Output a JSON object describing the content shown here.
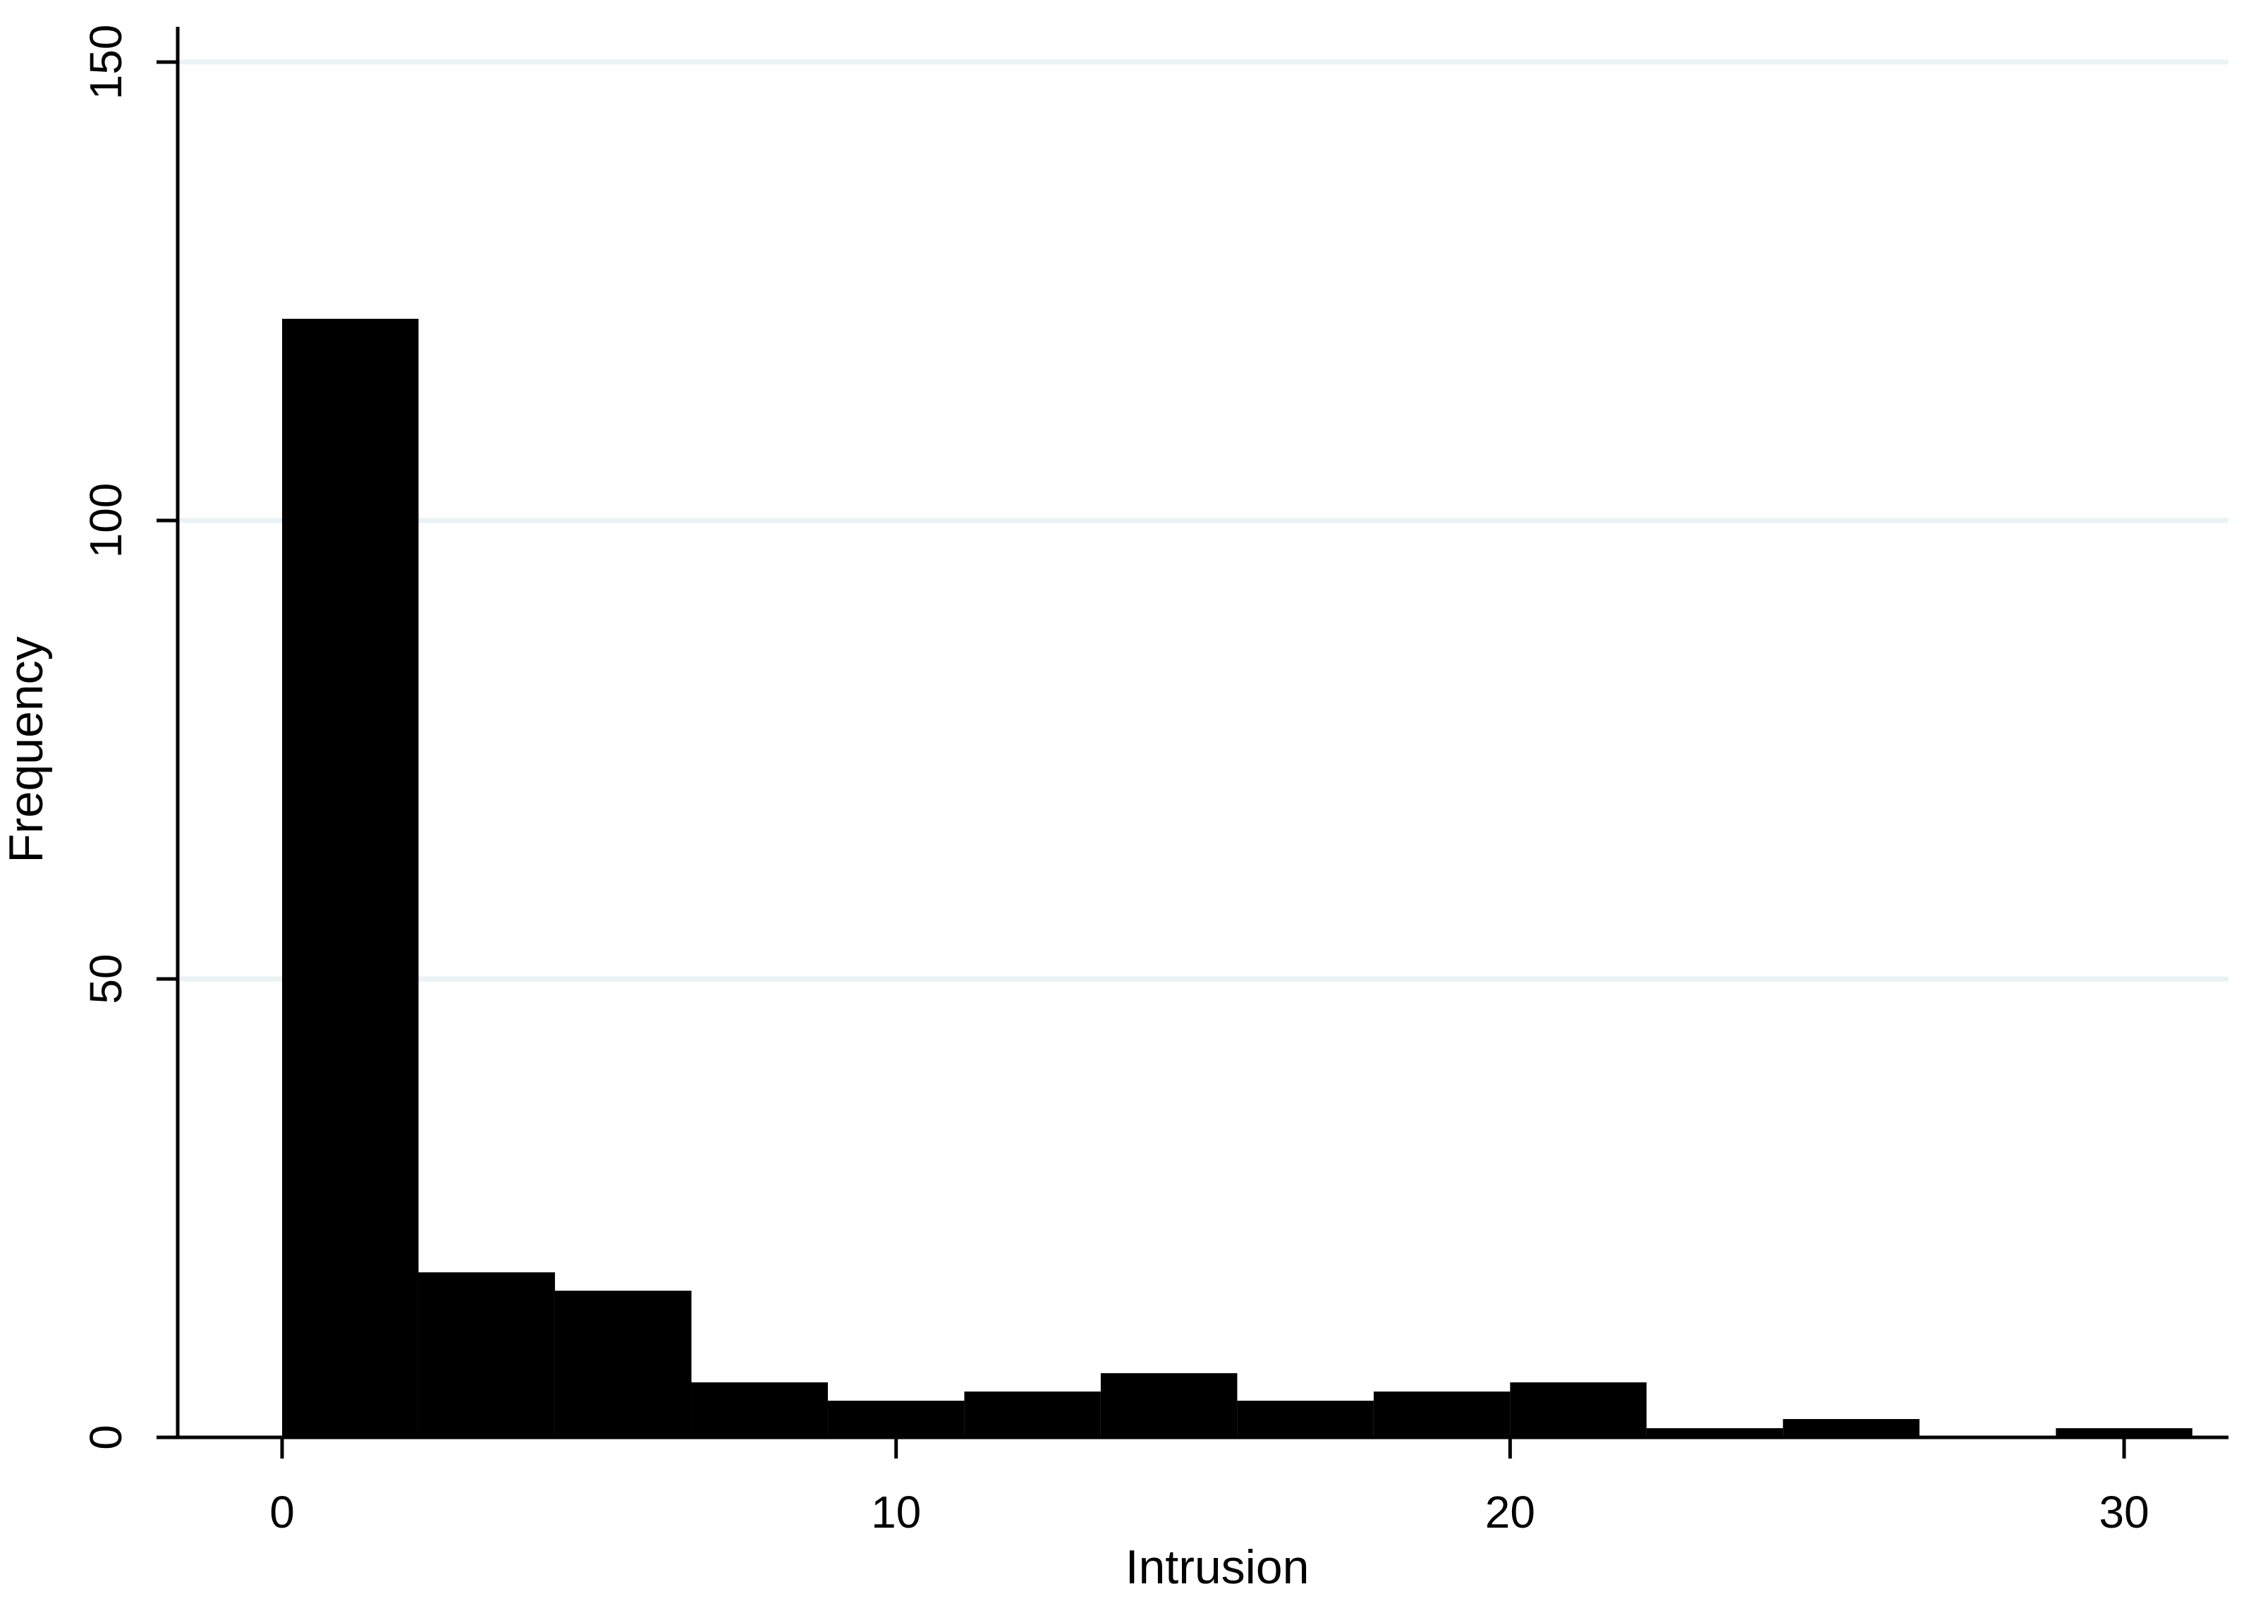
{
  "chart_data": {
    "type": "bar",
    "title": "",
    "xlabel": "Intrusion",
    "ylabel": "Frequency",
    "xlim": [
      -1.7,
      31.7
    ],
    "ylim": [
      0,
      150
    ],
    "x_ticks": [
      0,
      10,
      20,
      30
    ],
    "y_ticks": [
      0,
      50,
      100,
      150
    ],
    "grid": "horizontal",
    "bin_width": 2.222,
    "bins": [
      {
        "start": 0.0,
        "end": 2.222,
        "value": 122
      },
      {
        "start": 2.222,
        "end": 4.444,
        "value": 18
      },
      {
        "start": 4.444,
        "end": 6.667,
        "value": 16
      },
      {
        "start": 6.667,
        "end": 8.889,
        "value": 6
      },
      {
        "start": 8.889,
        "end": 11.111,
        "value": 4
      },
      {
        "start": 11.111,
        "end": 13.333,
        "value": 5
      },
      {
        "start": 13.333,
        "end": 15.556,
        "value": 7
      },
      {
        "start": 15.556,
        "end": 17.778,
        "value": 4
      },
      {
        "start": 17.778,
        "end": 20.0,
        "value": 5
      },
      {
        "start": 20.0,
        "end": 22.222,
        "value": 6
      },
      {
        "start": 22.222,
        "end": 24.444,
        "value": 1
      },
      {
        "start": 24.444,
        "end": 26.667,
        "value": 2
      },
      {
        "start": 26.667,
        "end": 28.889,
        "value": 0
      },
      {
        "start": 28.889,
        "end": 31.111,
        "value": 1
      }
    ],
    "colors": {
      "bar": "#000000",
      "grid": "#eaf2f3",
      "axis": "#000000",
      "background": "#ffffff"
    }
  }
}
